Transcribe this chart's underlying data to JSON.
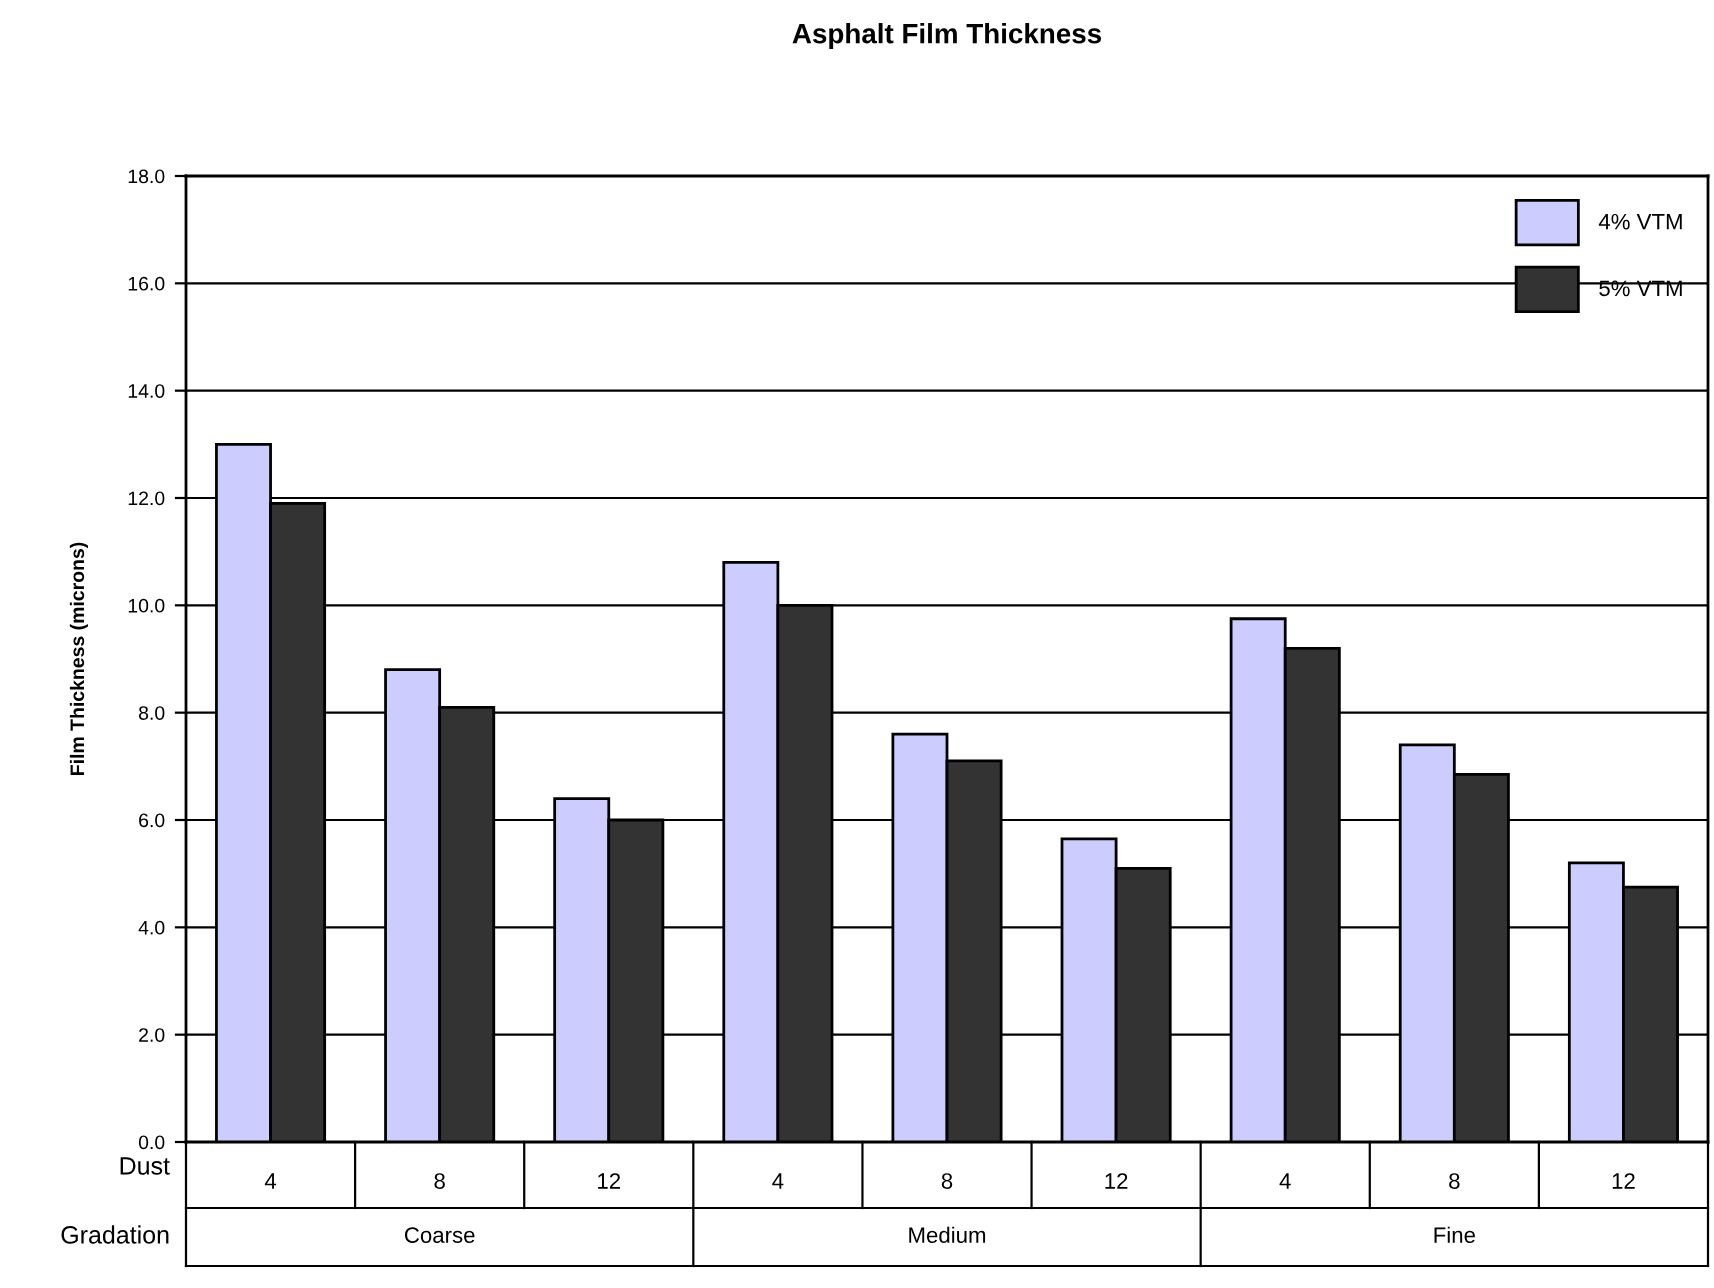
{
  "chart_data": {
    "type": "bar",
    "title": "Asphalt Film Thickness",
    "xlabel": "Dust",
    "ylabel": "Film Thickness (microns)",
    "annotations": [
      "Gradation",
      "Coarse",
      "Medium",
      "Fine"
    ],
    "categories": [
      "4",
      "8",
      "12",
      "4",
      "8",
      "12",
      "4",
      "8",
      "12"
    ],
    "series": [
      {
        "name": "4% VTM",
        "color": "#ccccff",
        "values": [
          13.0,
          8.8,
          6.4,
          10.8,
          7.6,
          5.65,
          9.75,
          7.4,
          5.2
        ]
      },
      {
        "name": "5% VTM",
        "color": "#333333",
        "values": [
          11.9,
          8.1,
          6.0,
          10.0,
          7.1,
          5.1,
          9.2,
          6.85,
          4.75
        ]
      }
    ],
    "ylim": [
      0,
      18
    ],
    "yticks": [
      {
        "value": 0,
        "label": "0.0"
      },
      {
        "value": 2,
        "label": "2.0"
      },
      {
        "value": 4,
        "label": "4.0"
      },
      {
        "value": 6,
        "label": "6.0"
      },
      {
        "value": 8,
        "label": "8.0"
      },
      {
        "value": 10,
        "label": "10.0"
      },
      {
        "value": 12,
        "label": "12.0"
      },
      {
        "value": 14,
        "label": "14.0"
      },
      {
        "value": 16,
        "label": "16.0"
      },
      {
        "value": 18,
        "label": "18.0"
      }
    ],
    "grid": "y",
    "legend": "top right"
  }
}
